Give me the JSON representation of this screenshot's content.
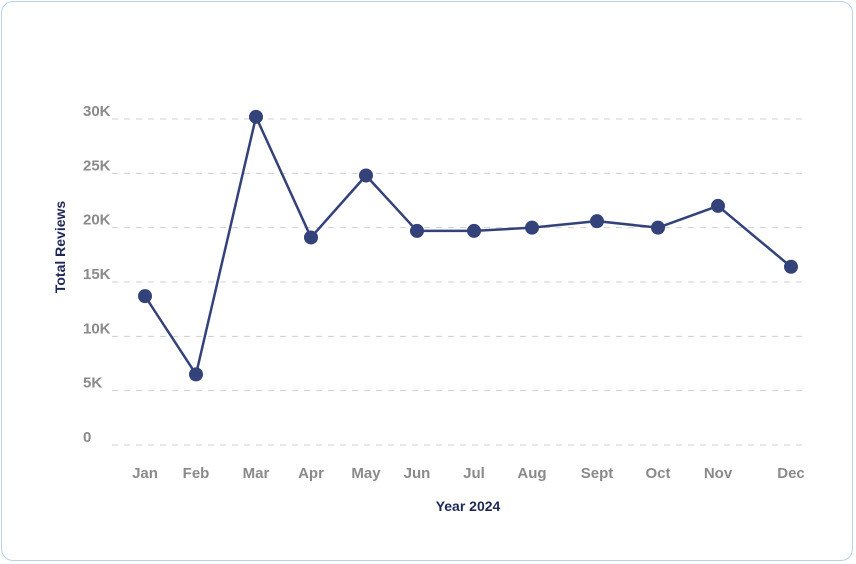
{
  "colors": {
    "line": "#34427a",
    "grid": "#d0d0d0",
    "tick_text": "#8a8a8a",
    "axis_title": "#1e2857"
  },
  "chart_data": {
    "type": "line",
    "title": "",
    "xlabel": "Year 2024",
    "ylabel": "Total Reviews",
    "categories": [
      "Jan",
      "Feb",
      "Mar",
      "Apr",
      "May",
      "Jun",
      "Jul",
      "Aug",
      "Sept",
      "Oct",
      "Nov",
      "Dec"
    ],
    "series": [
      {
        "name": "Total Reviews",
        "values": [
          13700,
          6500,
          30200,
          19100,
          24800,
          19700,
          19700,
          20000,
          20600,
          20000,
          22000,
          16400
        ]
      }
    ],
    "yticks": [
      0,
      5000,
      10000,
      15000,
      20000,
      25000,
      30000
    ],
    "ytick_labels": [
      "0",
      "5K",
      "10K",
      "15K",
      "20K",
      "25K",
      "30K"
    ],
    "ylim": [
      0,
      30000
    ],
    "grid": true,
    "legend": "none"
  }
}
